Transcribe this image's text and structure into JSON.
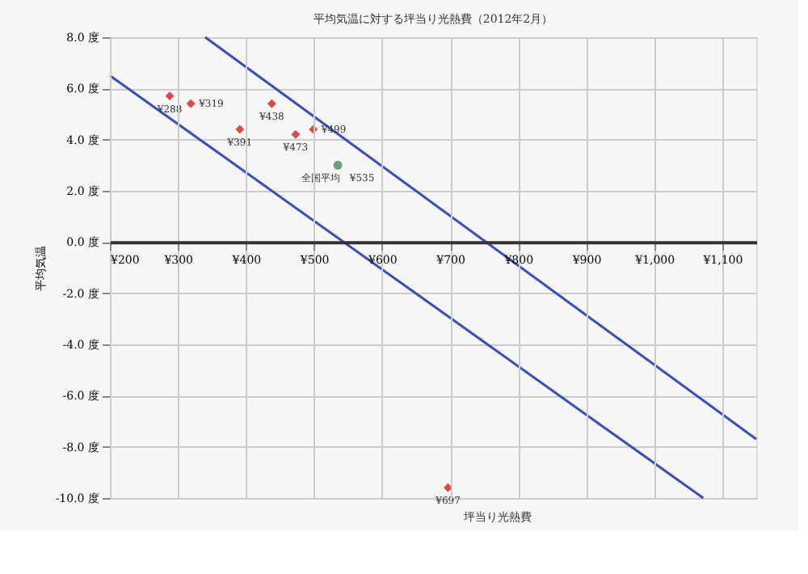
{
  "chart_data": {
    "type": "scatter",
    "title": "平均気温に対する坪当り光熱費（2012年2月）",
    "xlabel": "坪当り光熱費",
    "ylabel": "平均気温",
    "xlim": [
      200,
      1150
    ],
    "ylim": [
      -10,
      8
    ],
    "xticks": [
      {
        "value": 200,
        "label": "¥200"
      },
      {
        "value": 300,
        "label": "¥300"
      },
      {
        "value": 400,
        "label": "¥400"
      },
      {
        "value": 500,
        "label": "¥500"
      },
      {
        "value": 600,
        "label": "¥600"
      },
      {
        "value": 700,
        "label": "¥700"
      },
      {
        "value": 800,
        "label": "¥800"
      },
      {
        "value": 900,
        "label": "¥900"
      },
      {
        "value": 1000,
        "label": "¥1,000"
      },
      {
        "value": 1100,
        "label": "¥1,100"
      }
    ],
    "yticks": [
      {
        "value": -10,
        "label": "-10.0 度"
      },
      {
        "value": -8,
        "label": "-8.0 度"
      },
      {
        "value": -6,
        "label": "-6.0 度"
      },
      {
        "value": -4,
        "label": "-4.0 度"
      },
      {
        "value": -2,
        "label": "-2.0 度"
      },
      {
        "value": 0,
        "label": "0.0 度"
      },
      {
        "value": 2,
        "label": "2.0 度"
      },
      {
        "value": 4,
        "label": "4.0 度"
      },
      {
        "value": 6,
        "label": "6.0 度"
      },
      {
        "value": 8,
        "label": "8.0 度"
      }
    ],
    "grid": true,
    "annotations": [
      {
        "text": "¥288",
        "x": 288,
        "y": 5.7
      },
      {
        "text": "¥319",
        "x": 319,
        "y": 5.4
      },
      {
        "text": "¥391",
        "x": 391,
        "y": 4.4
      },
      {
        "text": "¥438",
        "x": 438,
        "y": 5.4
      },
      {
        "text": "¥473",
        "x": 473,
        "y": 4.2
      },
      {
        "text": "¥499",
        "x": 499,
        "y": 4.4
      },
      {
        "text": "全国平均　¥535",
        "x": 535,
        "y": 3.0
      },
      {
        "text": "¥697",
        "x": 697,
        "y": -9.6
      }
    ],
    "series": [
      {
        "marker": "diamond",
        "color": "#e04848",
        "x": [
          288,
          319,
          391,
          438,
          473,
          499,
          697
        ],
        "values": [
          5.7,
          5.4,
          4.4,
          5.4,
          4.2,
          4.4,
          -9.6
        ]
      },
      {
        "marker": "circle",
        "color": "#6e9e78",
        "x": [
          535
        ],
        "values": [
          3.0
        ]
      },
      {
        "type": "line",
        "line_style": "solid",
        "color": "#3a4fb5",
        "x": [
          200,
          1072
        ],
        "values": [
          6.5,
          -10
        ]
      },
      {
        "type": "line",
        "line_style": "solid",
        "color": "#3a4fb5",
        "x": [
          340,
          1150
        ],
        "values": [
          8,
          -7.7
        ]
      }
    ]
  }
}
